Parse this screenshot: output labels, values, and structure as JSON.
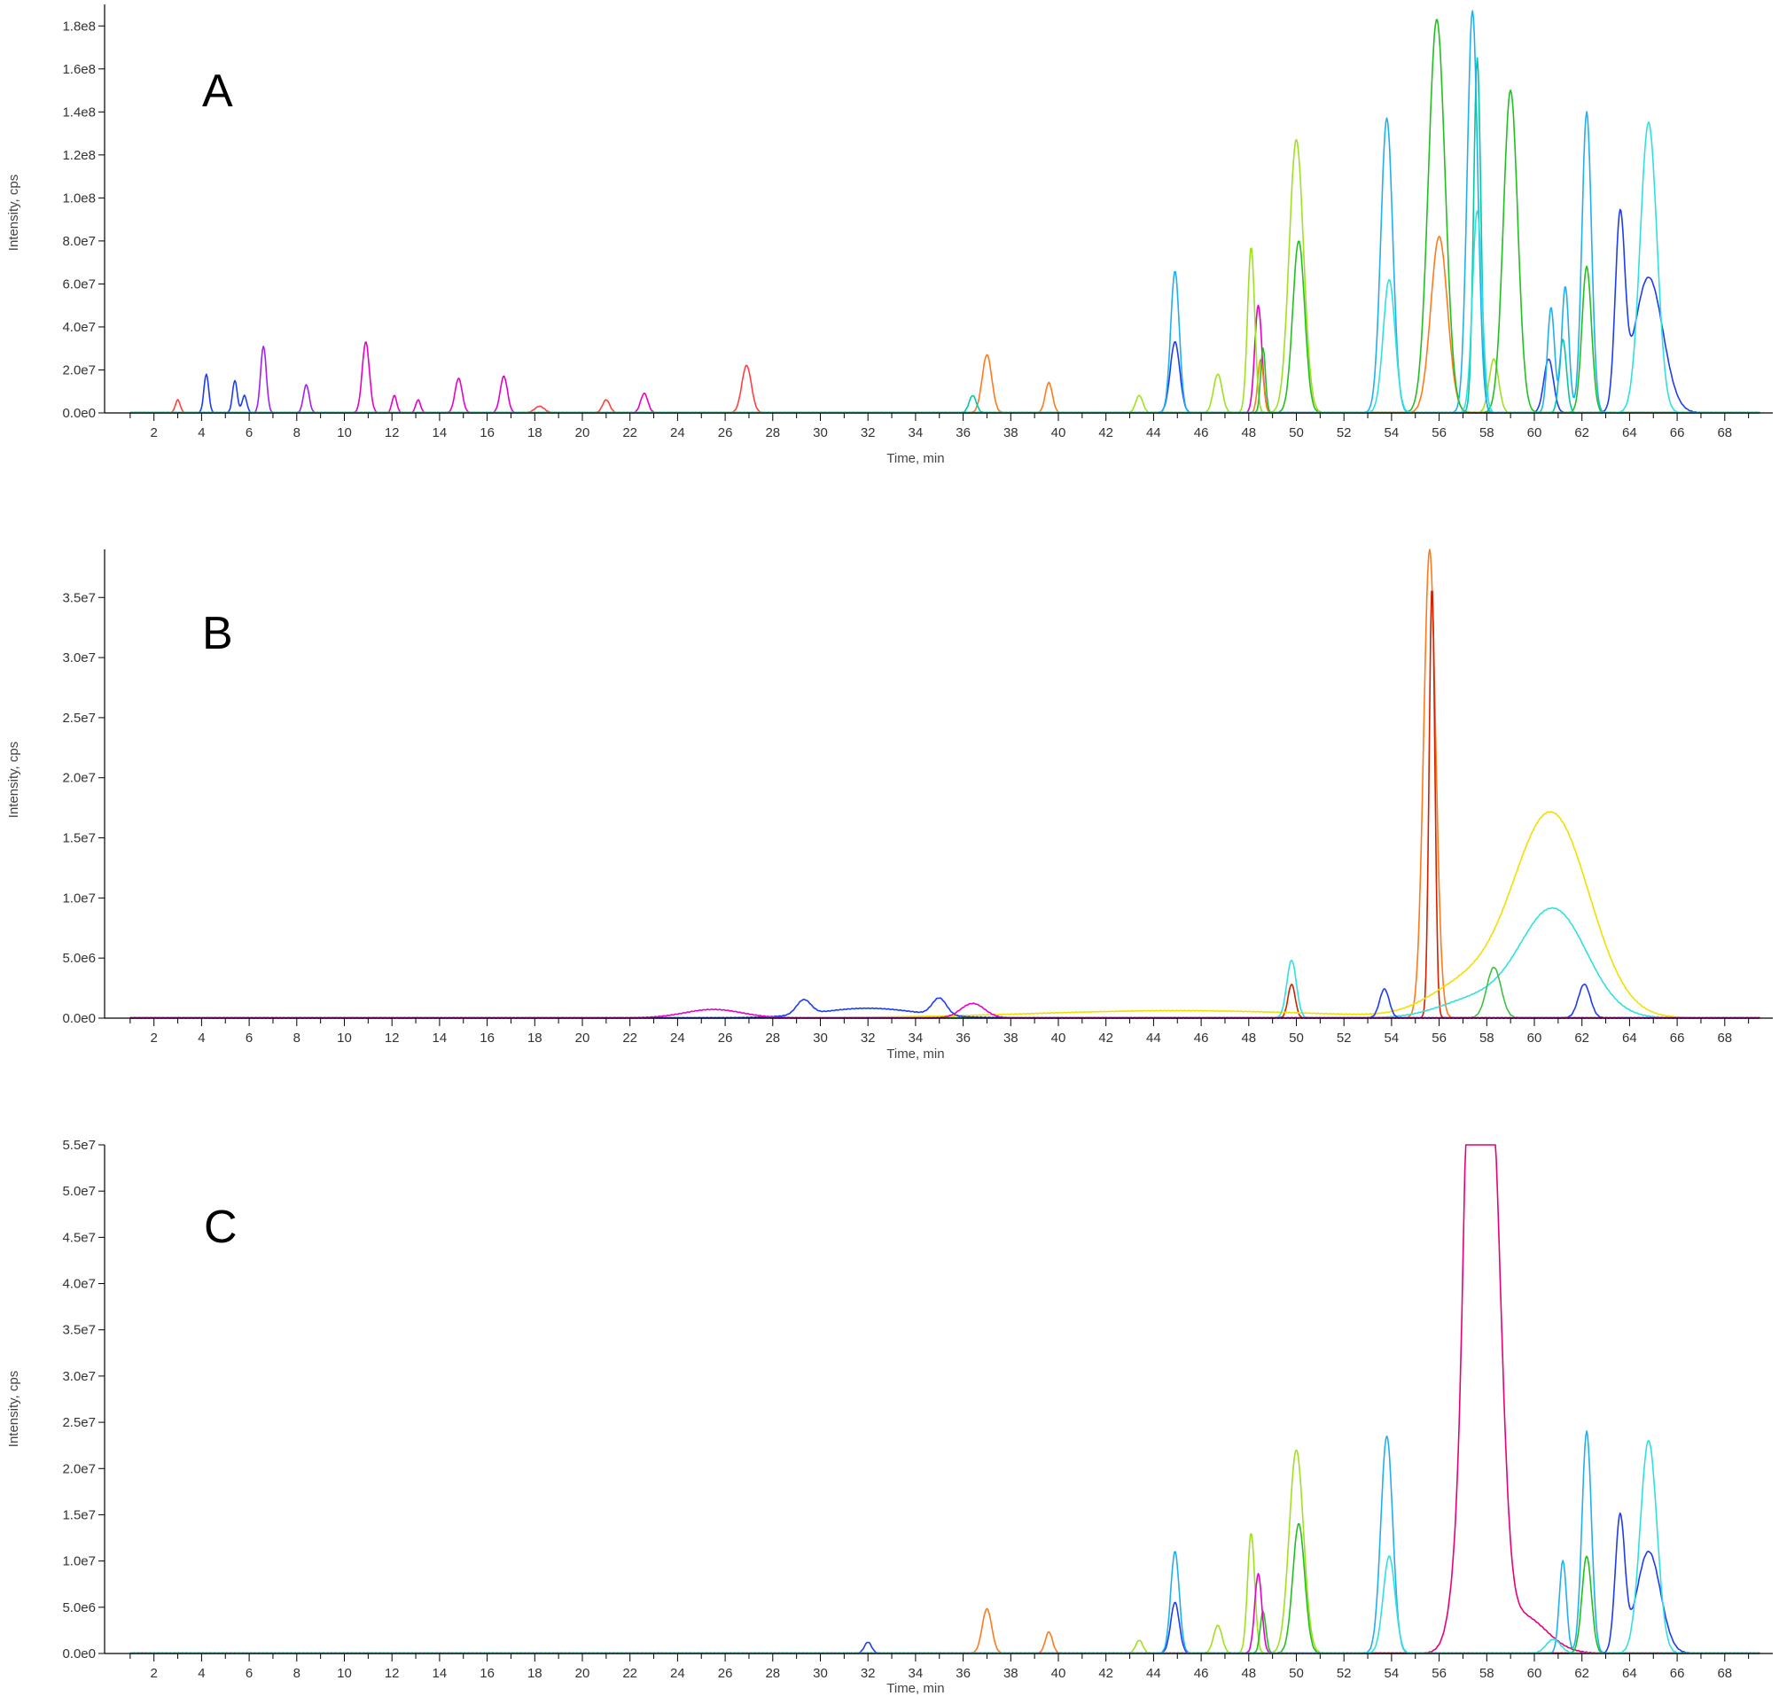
{
  "chart_data": [
    {
      "type": "line",
      "panel_label": "A",
      "xlabel": "Time, min",
      "ylabel": "Intensity, cps",
      "xlim": [
        0,
        70
      ],
      "ylim": [
        0,
        190000000.0
      ],
      "x_ticks": [
        "2",
        "4",
        "6",
        "8",
        "10",
        "12",
        "14",
        "16",
        "18",
        "20",
        "22",
        "24",
        "26",
        "28",
        "30",
        "32",
        "34",
        "36",
        "38",
        "40",
        "42",
        "44",
        "46",
        "48",
        "50",
        "52",
        "54",
        "56",
        "58",
        "60",
        "62",
        "64",
        "66",
        "68"
      ],
      "y_ticks": [
        {
          "v": 0,
          "label": "0.0e0"
        },
        {
          "v": 20000000.0,
          "label": "2.0e7"
        },
        {
          "v": 40000000.0,
          "label": "4.0e7"
        },
        {
          "v": 60000000.0,
          "label": "6.0e7"
        },
        {
          "v": 80000000.0,
          "label": "8.0e7"
        },
        {
          "v": 100000000.0,
          "label": "1.0e8"
        },
        {
          "v": 120000000.0,
          "label": "1.2e8"
        },
        {
          "v": 140000000.0,
          "label": "1.4e8"
        },
        {
          "v": 160000000.0,
          "label": "1.6e8"
        },
        {
          "v": 180000000.0,
          "label": "1.8e8"
        }
      ],
      "series": [
        {
          "color": "#1e3cf0",
          "peaks": [
            [
              4.2,
              18000000.0,
              0.1
            ],
            [
              5.4,
              15000000.0,
              0.1
            ],
            [
              5.8,
              8000000.0,
              0.1
            ],
            [
              44.9,
              33000000.0,
              0.2
            ],
            [
              60.6,
              25000000.0,
              0.2
            ],
            [
              63.6,
              86000000.0,
              0.2
            ],
            [
              64.8,
              63000000.0,
              0.6
            ]
          ]
        },
        {
          "color": "#a020f0",
          "peaks": [
            [
              6.6,
              31000000.0,
              0.12
            ],
            [
              8.4,
              13000000.0,
              0.12
            ]
          ]
        },
        {
          "color": "#e600c8",
          "peaks": [
            [
              10.9,
              33000000.0,
              0.15
            ],
            [
              12.1,
              8000000.0,
              0.1
            ],
            [
              13.1,
              6000000.0,
              0.1
            ],
            [
              14.8,
              16000000.0,
              0.15
            ],
            [
              16.7,
              17000000.0,
              0.15
            ],
            [
              22.6,
              9000000.0,
              0.15
            ],
            [
              48.4,
              50000000.0,
              0.15
            ]
          ]
        },
        {
          "color": "#ff4040",
          "peaks": [
            [
              3.0,
              6000000.0,
              0.1
            ],
            [
              21.0,
              6000000.0,
              0.15
            ],
            [
              26.9,
              22000000.0,
              0.2
            ],
            [
              18.2,
              3000000.0,
              0.2
            ]
          ]
        },
        {
          "color": "#ff7a1a",
          "peaks": [
            [
              37.0,
              27000000.0,
              0.2
            ],
            [
              39.6,
              14000000.0,
              0.15
            ],
            [
              48.5,
              25000000.0,
              0.12
            ],
            [
              56.0,
              82000000.0,
              0.35
            ]
          ]
        },
        {
          "color": "#a0e020",
          "peaks": [
            [
              43.4,
              8000000.0,
              0.15
            ],
            [
              46.7,
              18000000.0,
              0.18
            ],
            [
              48.1,
              77000000.0,
              0.15
            ],
            [
              50.0,
              127000000.0,
              0.3
            ],
            [
              58.3,
              25000000.0,
              0.2
            ]
          ]
        },
        {
          "color": "#20c020",
          "peaks": [
            [
              48.6,
              30000000.0,
              0.1
            ],
            [
              50.1,
              80000000.0,
              0.25
            ],
            [
              55.9,
              183000000.0,
              0.35
            ],
            [
              59.0,
              150000000.0,
              0.3
            ],
            [
              62.2,
              68000000.0,
              0.2
            ]
          ]
        },
        {
          "color": "#00c8a0",
          "peaks": [
            [
              36.4,
              8000000.0,
              0.15
            ],
            [
              57.6,
              165000000.0,
              0.15
            ],
            [
              61.2,
              34000000.0,
              0.15
            ]
          ]
        },
        {
          "color": "#20b0f0",
          "peaks": [
            [
              44.9,
              66000000.0,
              0.18
            ],
            [
              53.8,
              137000000.0,
              0.25
            ],
            [
              57.4,
              187000000.0,
              0.22
            ],
            [
              60.7,
              49000000.0,
              0.15
            ],
            [
              61.3,
              59000000.0,
              0.15
            ],
            [
              62.2,
              140000000.0,
              0.2
            ]
          ]
        },
        {
          "color": "#30e0e0",
          "peaks": [
            [
              53.9,
              62000000.0,
              0.25
            ],
            [
              57.6,
              94000000.0,
              0.2
            ],
            [
              64.8,
              135000000.0,
              0.35
            ]
          ]
        }
      ]
    },
    {
      "type": "line",
      "panel_label": "B",
      "xlabel": "Time, min",
      "ylabel": "Intensity, cps",
      "xlim": [
        0,
        70
      ],
      "ylim": [
        0,
        39000000.0
      ],
      "x_ticks": [
        "2",
        "4",
        "6",
        "8",
        "10",
        "12",
        "14",
        "16",
        "18",
        "20",
        "22",
        "24",
        "26",
        "28",
        "30",
        "32",
        "34",
        "36",
        "38",
        "40",
        "42",
        "44",
        "46",
        "48",
        "50",
        "52",
        "54",
        "56",
        "58",
        "60",
        "62",
        "64",
        "66",
        "68"
      ],
      "y_ticks": [
        {
          "v": 0,
          "label": "0.0e0"
        },
        {
          "v": 5000000.0,
          "label": "5.0e6"
        },
        {
          "v": 10000000.0,
          "label": "1.0e7"
        },
        {
          "v": 15000000.0,
          "label": "1.5e7"
        },
        {
          "v": 20000000.0,
          "label": "2.0e7"
        },
        {
          "v": 25000000.0,
          "label": "2.5e7"
        },
        {
          "v": 30000000.0,
          "label": "3.0e7"
        },
        {
          "v": 35000000.0,
          "label": "3.5e7"
        }
      ],
      "series": [
        {
          "color": "#ff7a1a",
          "peaks": [
            [
              55.6,
              39000000.0,
              0.25
            ]
          ]
        },
        {
          "color": "#d42000",
          "peaks": [
            [
              55.7,
              36000000.0,
              0.12
            ],
            [
              49.8,
              2800000.0,
              0.15
            ]
          ]
        },
        {
          "color": "#f0e000",
          "peaks": [
            [
              60.7,
              17000000.0,
              1.6
            ],
            [
              57.0,
              2500000.0,
              1.5
            ],
            [
              45.0,
              600000.0,
              6
            ]
          ]
        },
        {
          "color": "#30e0e0",
          "peaks": [
            [
              60.8,
              9000000.0,
              1.4
            ],
            [
              49.8,
              4800000.0,
              0.2
            ],
            [
              57.5,
              1500000.0,
              1.5
            ]
          ]
        },
        {
          "color": "#40c040",
          "peaks": [
            [
              58.3,
              4200000.0,
              0.3
            ]
          ]
        },
        {
          "color": "#1e3cf0",
          "peaks": [
            [
              29.3,
              1200000.0,
              0.3
            ],
            [
              35.0,
              1400000.0,
              0.3
            ],
            [
              53.7,
              2400000.0,
              0.2
            ],
            [
              62.1,
              2800000.0,
              0.25
            ],
            [
              32.0,
              800000.0,
              2.0
            ]
          ]
        },
        {
          "color": "#e600c8",
          "peaks": [
            [
              25.5,
              700000.0,
              1.2
            ],
            [
              36.4,
              1200000.0,
              0.5
            ]
          ]
        }
      ]
    },
    {
      "type": "line",
      "panel_label": "C",
      "xlabel": "Time, min",
      "ylabel": "Intensity, cps",
      "xlim": [
        0,
        70
      ],
      "ylim": [
        0,
        55000000.0
      ],
      "x_ticks": [
        "2",
        "4",
        "6",
        "8",
        "10",
        "12",
        "14",
        "16",
        "18",
        "20",
        "22",
        "24",
        "26",
        "28",
        "30",
        "32",
        "34",
        "36",
        "38",
        "40",
        "42",
        "44",
        "46",
        "48",
        "50",
        "52",
        "54",
        "56",
        "58",
        "60",
        "62",
        "64",
        "66",
        "68"
      ],
      "y_ticks": [
        {
          "v": 0,
          "label": "0.0e0"
        },
        {
          "v": 5000000.0,
          "label": "5.0e6"
        },
        {
          "v": 10000000.0,
          "label": "1.0e7"
        },
        {
          "v": 15000000.0,
          "label": "1.5e7"
        },
        {
          "v": 20000000.0,
          "label": "2.0e7"
        },
        {
          "v": 25000000.0,
          "label": "2.5e7"
        },
        {
          "v": 30000000.0,
          "label": "3.0e7"
        },
        {
          "v": 35000000.0,
          "label": "3.5e7"
        },
        {
          "v": 40000000.0,
          "label": "4.0e7"
        },
        {
          "v": 45000000.0,
          "label": "4.5e7"
        },
        {
          "v": 50000000.0,
          "label": "5.0e7"
        },
        {
          "v": 55000000.0,
          "label": "5.5e7"
        }
      ],
      "series": [
        {
          "color": "#e6007a",
          "peaks": [
            [
              57.7,
              54000000.0,
              0.6
            ],
            [
              57.3,
              30000000.0,
              0.25
            ],
            [
              58.3,
              25000000.0,
              0.35
            ],
            [
              59.5,
              4000000.0,
              1.0
            ]
          ]
        },
        {
          "color": "#1e3cf0",
          "peaks": [
            [
              32.0,
              1200000.0,
              0.15
            ],
            [
              44.9,
              5500000.0,
              0.18
            ],
            [
              63.6,
              14500000.0,
              0.2
            ],
            [
              64.8,
              11000000.0,
              0.5
            ]
          ]
        },
        {
          "color": "#ff7a1a",
          "peaks": [
            [
              37.0,
              4800000.0,
              0.2
            ],
            [
              39.6,
              2300000.0,
              0.15
            ]
          ]
        },
        {
          "color": "#a0e020",
          "peaks": [
            [
              43.4,
              1400000.0,
              0.15
            ],
            [
              46.7,
              3000000.0,
              0.18
            ],
            [
              48.1,
              13000000.0,
              0.15
            ],
            [
              50.0,
              22000000.0,
              0.3
            ]
          ]
        },
        {
          "color": "#20c020",
          "peaks": [
            [
              48.6,
              4500000.0,
              0.12
            ],
            [
              50.1,
              14000000.0,
              0.25
            ],
            [
              62.2,
              10500000.0,
              0.2
            ]
          ]
        },
        {
          "color": "#e600c8",
          "peaks": [
            [
              48.4,
              8600000.0,
              0.15
            ]
          ]
        },
        {
          "color": "#20b0f0",
          "peaks": [
            [
              44.9,
              11000000.0,
              0.18
            ],
            [
              53.8,
              23500000.0,
              0.25
            ],
            [
              61.2,
              10000000.0,
              0.15
            ],
            [
              62.2,
              24000000.0,
              0.2
            ]
          ]
        },
        {
          "color": "#30e0e0",
          "peaks": [
            [
              53.9,
              10500000.0,
              0.25
            ],
            [
              64.8,
              23000000.0,
              0.35
            ],
            [
              60.8,
              1500000.0,
              0.3
            ]
          ]
        }
      ]
    }
  ]
}
